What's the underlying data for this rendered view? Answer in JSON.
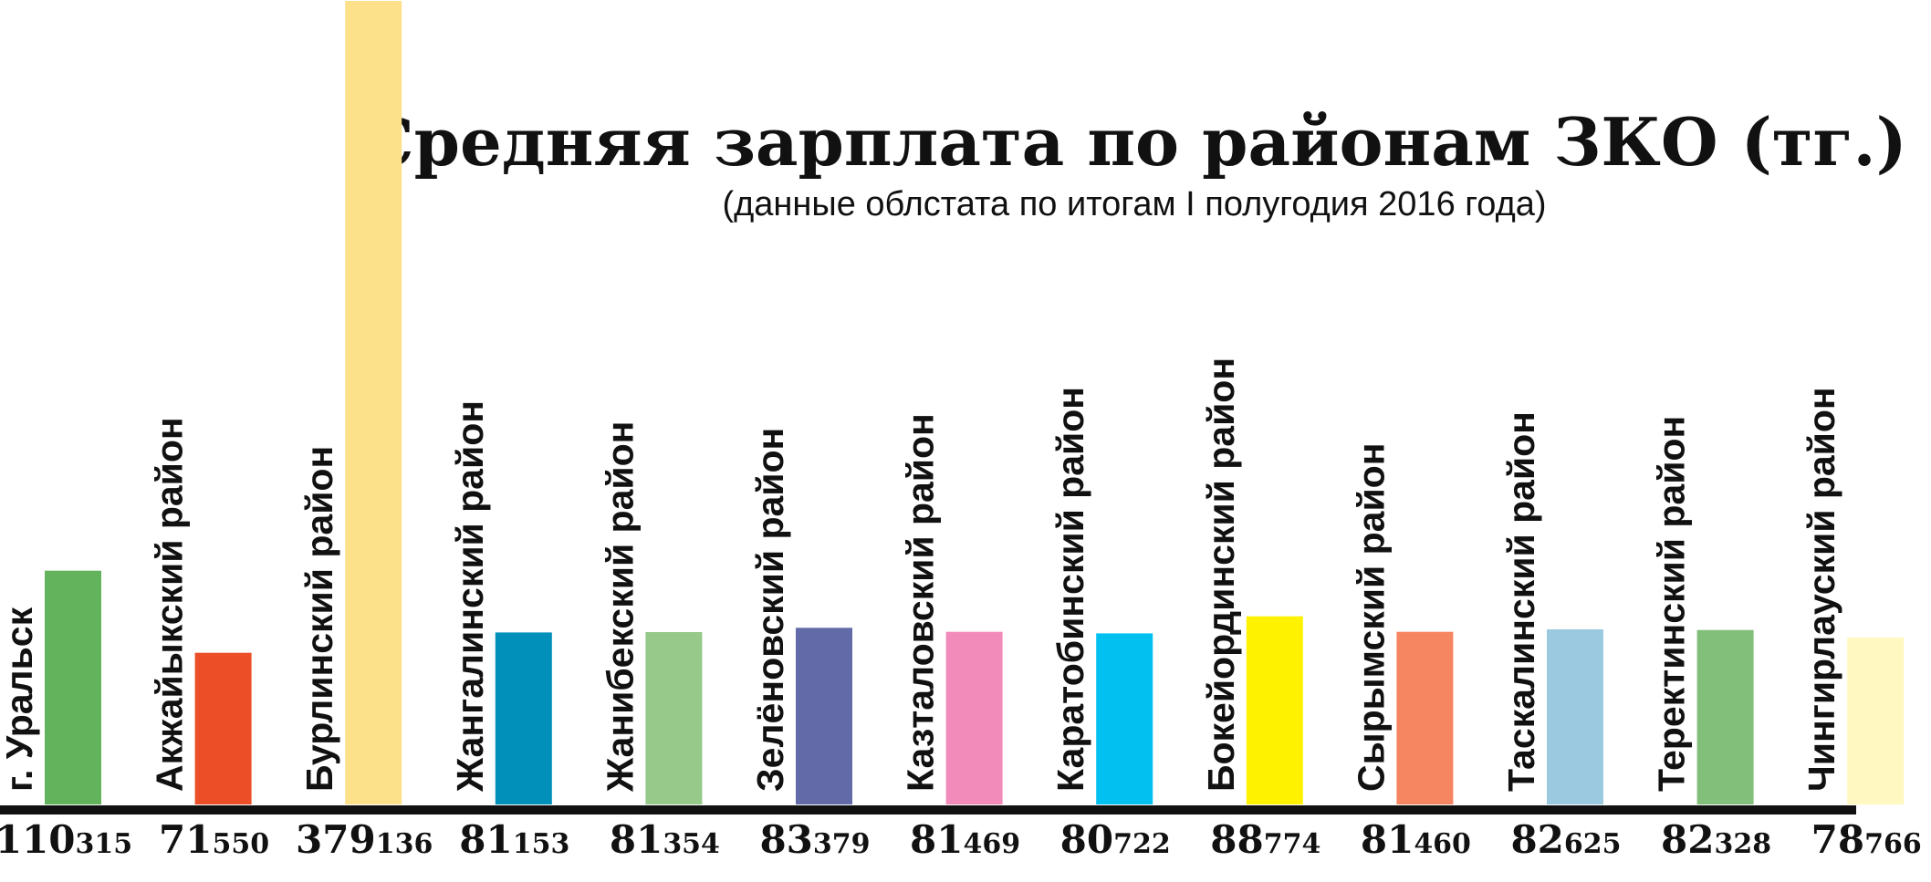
{
  "chart_data": {
    "type": "bar",
    "title": "Средняя зарплата по районам ЗКО (тг.)",
    "subtitle": "(данные облстата по итогам I полугодия 2016 года)",
    "categories": [
      "г. Уральск",
      "Акжайыкский район",
      "Бурлинский район",
      "Жангалинский район",
      "Жанибекский район",
      "Зелёновский район",
      "Казталовский район",
      "Каратобинский район",
      "Бокейординский район",
      "Сырымский район",
      "Таскалинский район",
      "Теректинский район",
      "Чингирлауский район"
    ],
    "values": [
      110315,
      71550,
      379136,
      81153,
      81354,
      83379,
      81469,
      80722,
      88774,
      81460,
      82625,
      82328,
      78766
    ],
    "value_labels": [
      {
        "big": "110",
        "small": "315"
      },
      {
        "big": "71",
        "small": "550"
      },
      {
        "big": "379",
        "small": "136"
      },
      {
        "big": "81",
        "small": "153"
      },
      {
        "big": "81",
        "small": "354"
      },
      {
        "big": "83",
        "small": "379"
      },
      {
        "big": "81",
        "small": "469"
      },
      {
        "big": "80",
        "small": "722"
      },
      {
        "big": "88",
        "small": "774"
      },
      {
        "big": "81",
        "small": "460"
      },
      {
        "big": "82",
        "small": "625"
      },
      {
        "big": "82",
        "small": "328"
      },
      {
        "big": "78",
        "small": "766"
      }
    ],
    "colors": [
      "#62b35c",
      "#ec4e27",
      "#fde08a",
      "#0190b9",
      "#96c98a",
      "#626ba7",
      "#f38bba",
      "#02c0f0",
      "#fff200",
      "#f68561",
      "#9bc9df",
      "#81bf7a",
      "#fff8c0"
    ],
    "ylim": [
      0,
      380000
    ],
    "grid": false,
    "legend": "none"
  }
}
